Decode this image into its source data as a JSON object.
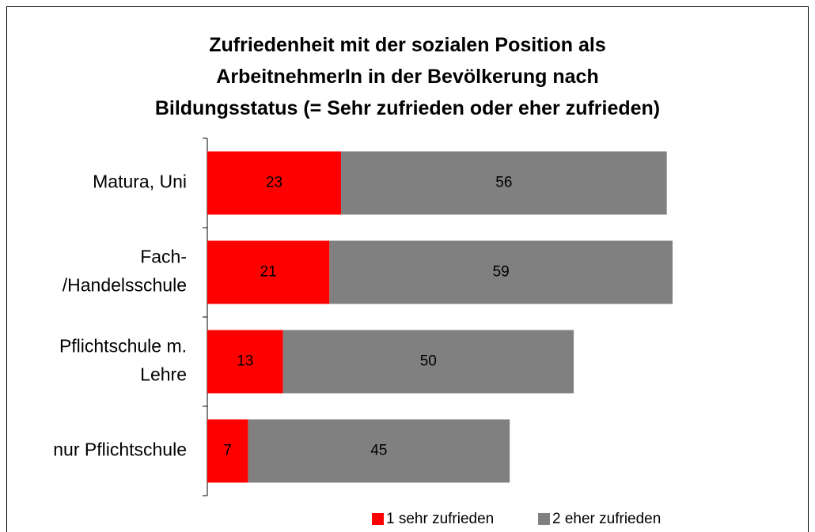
{
  "chart_data": {
    "type": "stacked-barh",
    "title": "Zufriedenheit mit der sozialen Position als\nArbeitnehmerIn in der Bevölkerung nach\nBildungsstatus (= Sehr zufrieden oder eher zufrieden)",
    "categories": [
      "Matura, Uni",
      "Fach-\n/Handelsschule",
      "Pflichtschule m.\nLehre",
      "nur Pflichtschule"
    ],
    "series": [
      {
        "name": "1 sehr zufrieden",
        "color": "#ff0000",
        "values": [
          23,
          21,
          13,
          7
        ]
      },
      {
        "name": "2 eher zufrieden",
        "color": "#808080",
        "values": [
          56,
          59,
          50,
          45
        ]
      }
    ],
    "xlim": [
      0,
      100
    ],
    "legend": "bottom"
  }
}
